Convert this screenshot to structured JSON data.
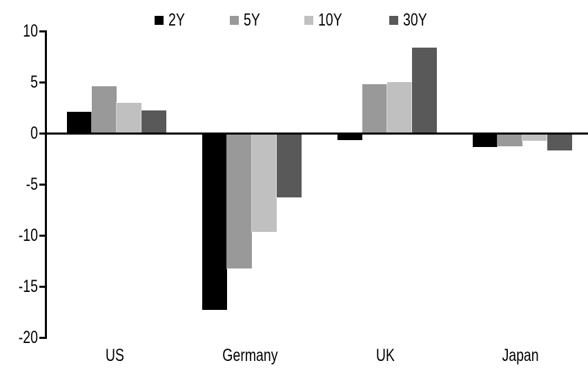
{
  "chart_data": {
    "type": "bar",
    "title": "",
    "xlabel": "",
    "ylabel": "",
    "categories": [
      "US",
      "Germany",
      "UK",
      "Japan"
    ],
    "series": [
      {
        "name": "2Y",
        "color": "#000000",
        "values": [
          2.1,
          -17.3,
          -0.7,
          -1.4
        ]
      },
      {
        "name": "5Y",
        "color": "#999999",
        "values": [
          4.6,
          -13.3,
          4.8,
          -1.3
        ]
      },
      {
        "name": "10Y",
        "color": "#c0c0c0",
        "values": [
          3.0,
          -9.7,
          5.0,
          -0.8
        ]
      },
      {
        "name": "30Y",
        "color": "#595959",
        "values": [
          2.2,
          -6.3,
          8.4,
          -1.7
        ]
      }
    ],
    "yticks": [
      10,
      5,
      0,
      -5,
      -10,
      -15,
      -20
    ],
    "ylim": [
      -20,
      10
    ],
    "legend_position": "top",
    "grid": false,
    "background_color": "#ffffff",
    "axis_color": "#000000"
  }
}
